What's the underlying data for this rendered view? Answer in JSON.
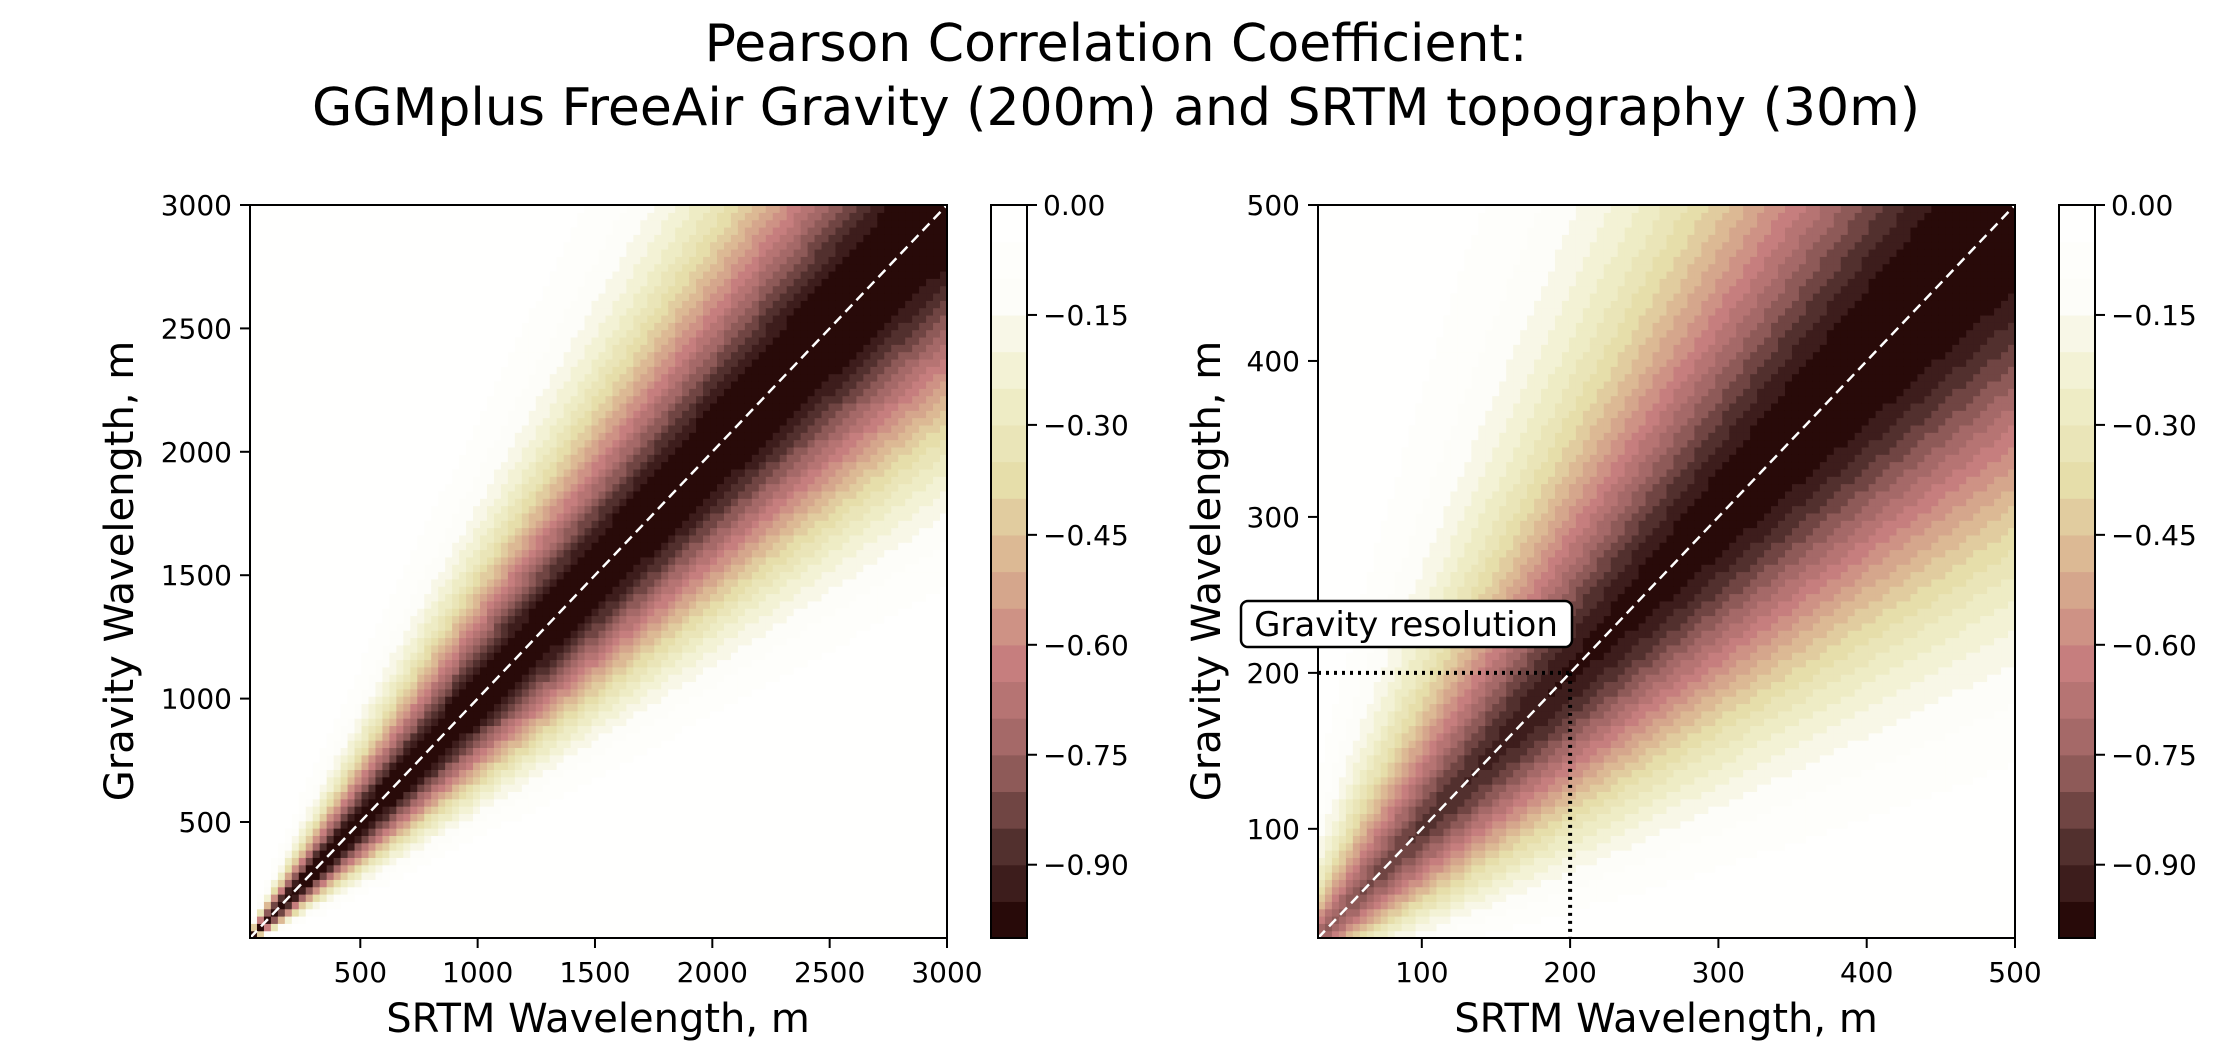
{
  "title_lines": [
    "Pearson Correlation Coefficient:",
    "GGMplus FreeAir Gravity (200m) and SRTM topography (30m)"
  ],
  "colors": {
    "colormap": [
      "#1e0000",
      "#52302e",
      "#9d6463",
      "#c67e7e",
      "#d9b08f",
      "#e6deaa",
      "#f0efcc",
      "#fdfdf9",
      "#ffffff"
    ],
    "diagonal": "#ffffff",
    "annotation_line": "#000000"
  },
  "chart_data": [
    {
      "type": "heatmap",
      "xlabel": "SRTM Wavelength, m",
      "ylabel": "Gravity Wavelength, m",
      "xlim": [
        30,
        3000
      ],
      "ylim": [
        30,
        3000
      ],
      "xticks": [
        "500",
        "1000",
        "1500",
        "2000",
        "2500",
        "3000"
      ],
      "yticks": [
        "500",
        "1000",
        "1500",
        "2000",
        "2500",
        "3000"
      ],
      "diagonal_line": true,
      "value_range": [
        -1.0,
        0.0
      ],
      "colorbar_ticks": [
        "0.00",
        "−0.15",
        "−0.30",
        "−0.45",
        "−0.60",
        "−0.75",
        "−0.90"
      ]
    },
    {
      "type": "heatmap",
      "xlabel": "SRTM Wavelength, m",
      "ylabel": "Gravity Wavelength, m",
      "xlim": [
        30,
        500
      ],
      "ylim": [
        30,
        500
      ],
      "xticks": [
        "100",
        "200",
        "300",
        "400",
        "500"
      ],
      "yticks": [
        "100",
        "200",
        "300",
        "400",
        "500"
      ],
      "diagonal_line": true,
      "value_range": [
        -1.0,
        0.0
      ],
      "colorbar_ticks": [
        "0.00",
        "−0.15",
        "−0.30",
        "−0.45",
        "−0.60",
        "−0.75",
        "−0.90"
      ],
      "annotation": {
        "text": "Gravity resolution",
        "x": 200,
        "y": 200
      }
    }
  ]
}
